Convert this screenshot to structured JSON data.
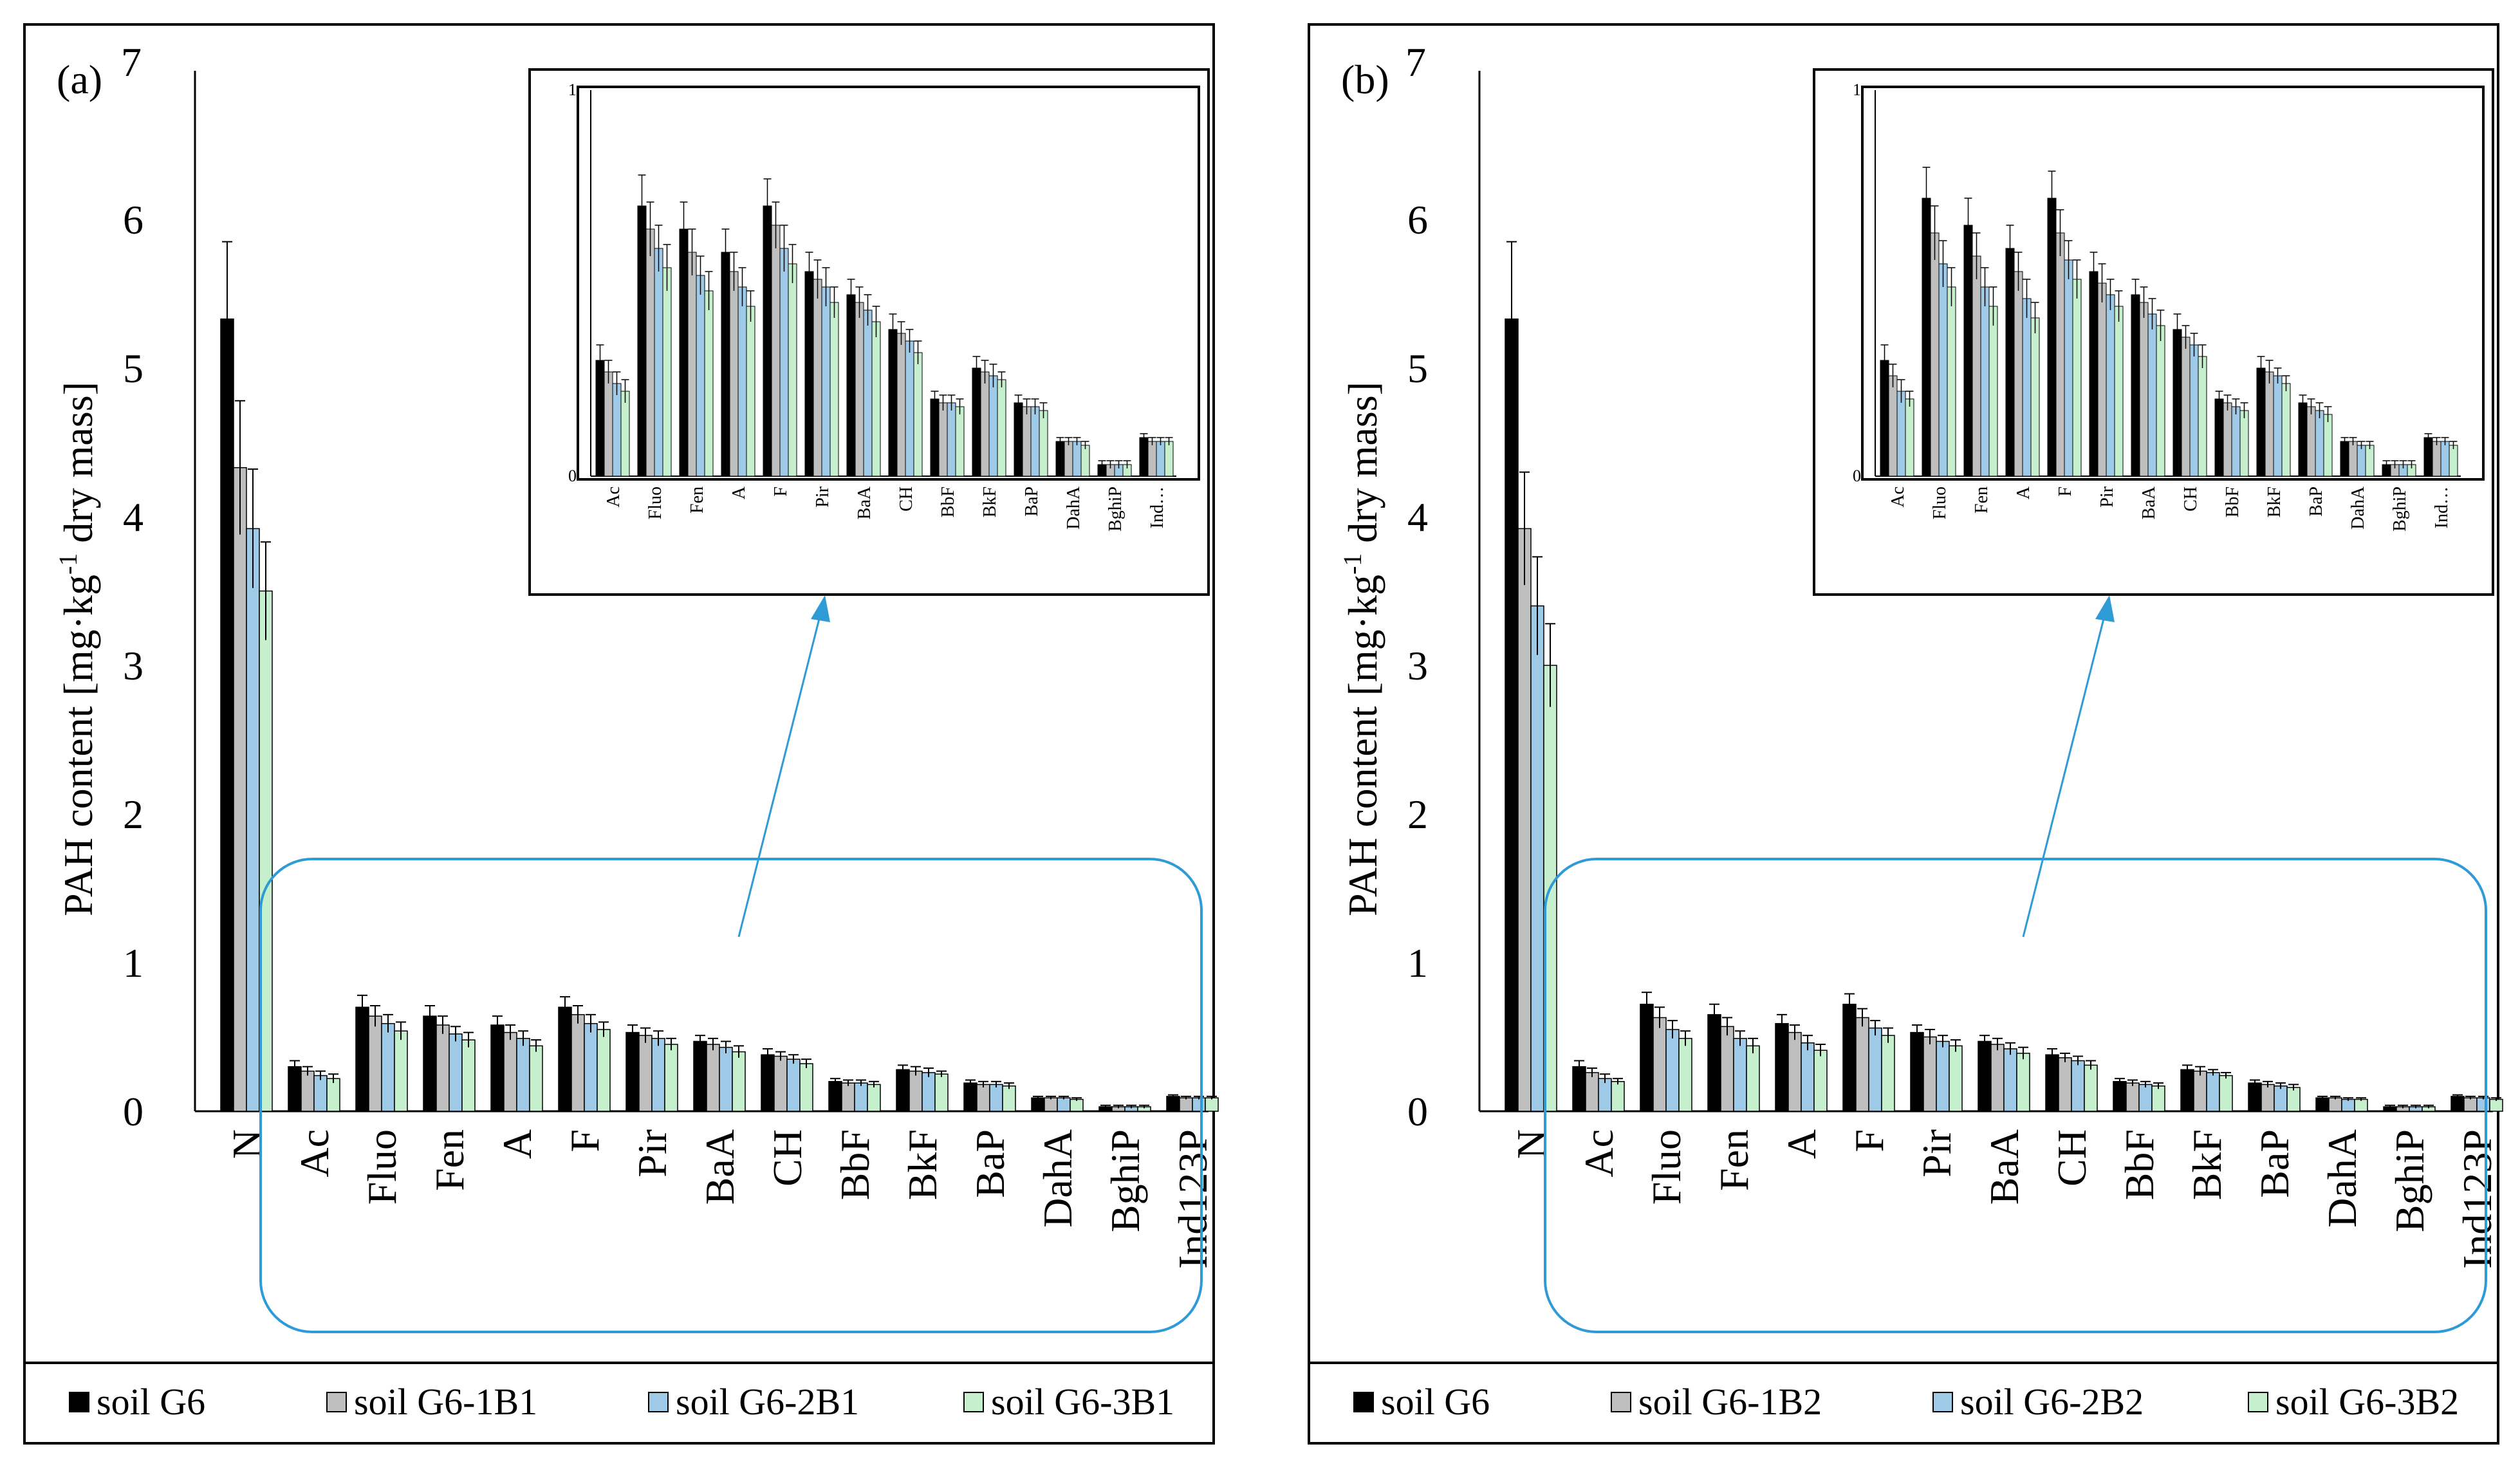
{
  "panels": [
    {
      "label": "(a)",
      "legend": [
        "soil G6",
        "soil G6-1B1",
        "soil G6-2B1",
        "soil G6-3B1"
      ]
    },
    {
      "label": "(b)",
      "legend": [
        "soil G6",
        "soil G6-1B2",
        "soil G6-2B2",
        "soil G6-3B2"
      ]
    }
  ],
  "colors": {
    "series": [
      "#000000",
      "#bfbfbf",
      "#9ecae8",
      "#c6efce"
    ],
    "highlight": "#2f9bd6",
    "frame": "#000000"
  },
  "chart_data": [
    {
      "type": "bar",
      "panel": "(a)",
      "ylabel": "PAH content [mg·kg⁻¹ dry mass]",
      "ylabel_main": "PAH content [mg·kg",
      "ylabel_sup": "-1",
      "ylabel_tail": " dry mass]",
      "ylim": [
        0,
        7
      ],
      "yticks": [
        "0",
        "1",
        "2",
        "3",
        "4",
        "5",
        "6",
        "7"
      ],
      "categories": [
        "N",
        "Ac",
        "Fluo",
        "Fen",
        "A",
        "F",
        "Pir",
        "BaA",
        "CH",
        "BbF",
        "BkF",
        "BaP",
        "DahA",
        "BghiP",
        "Ind123P"
      ],
      "series": [
        {
          "name": "soil G6",
          "values": [
            5.33,
            0.3,
            0.7,
            0.64,
            0.58,
            0.7,
            0.53,
            0.47,
            0.38,
            0.2,
            0.28,
            0.19,
            0.09,
            0.03,
            0.1
          ],
          "errors": [
            0.52,
            0.04,
            0.08,
            0.07,
            0.06,
            0.07,
            0.05,
            0.04,
            0.04,
            0.02,
            0.03,
            0.02,
            0.01,
            0.01,
            0.01
          ]
        },
        {
          "name": "soil G6-1B1",
          "values": [
            4.33,
            0.27,
            0.64,
            0.58,
            0.53,
            0.65,
            0.51,
            0.45,
            0.37,
            0.19,
            0.27,
            0.18,
            0.09,
            0.03,
            0.09
          ],
          "errors": [
            0.45,
            0.03,
            0.07,
            0.06,
            0.05,
            0.06,
            0.05,
            0.04,
            0.03,
            0.02,
            0.03,
            0.02,
            0.01,
            0.01,
            0.01
          ]
        },
        {
          "name": "soil G6-2B1",
          "values": [
            3.92,
            0.24,
            0.59,
            0.52,
            0.49,
            0.59,
            0.49,
            0.43,
            0.35,
            0.19,
            0.26,
            0.18,
            0.09,
            0.03,
            0.09
          ],
          "errors": [
            0.4,
            0.03,
            0.06,
            0.05,
            0.05,
            0.06,
            0.05,
            0.04,
            0.03,
            0.02,
            0.03,
            0.02,
            0.01,
            0.01,
            0.01
          ]
        },
        {
          "name": "soil G6-3B1",
          "values": [
            3.5,
            0.22,
            0.54,
            0.48,
            0.44,
            0.55,
            0.45,
            0.4,
            0.32,
            0.18,
            0.25,
            0.17,
            0.08,
            0.03,
            0.09
          ],
          "errors": [
            0.33,
            0.03,
            0.06,
            0.05,
            0.04,
            0.05,
            0.04,
            0.04,
            0.03,
            0.02,
            0.02,
            0.02,
            0.01,
            0.01,
            0.01
          ]
        }
      ],
      "inset": {
        "ylim": [
          0,
          1
        ],
        "yticks": [
          "0",
          "1"
        ],
        "categories": [
          "Ac",
          "Fluo",
          "Fen",
          "A",
          "F",
          "Pir",
          "BaA",
          "CH",
          "BbF",
          "BkF",
          "BaP",
          "DahA",
          "BghiP",
          "Ind…"
        ]
      }
    },
    {
      "type": "bar",
      "panel": "(b)",
      "ylabel": "PAH content [mg·kg⁻¹ dry mass]",
      "ylabel_main": "PAH content [mg·kg",
      "ylabel_sup": "-1",
      "ylabel_tail": " dry mass]",
      "ylim": [
        0,
        7
      ],
      "yticks": [
        "0",
        "1",
        "2",
        "3",
        "4",
        "5",
        "6",
        "7"
      ],
      "categories": [
        "N",
        "Ac",
        "Fluo",
        "Fen",
        "A",
        "F",
        "Pir",
        "BaA",
        "CH",
        "BbF",
        "BkF",
        "BaP",
        "DahA",
        "BghiP",
        "Ind123P"
      ],
      "series": [
        {
          "name": "soil G6",
          "values": [
            5.33,
            0.3,
            0.72,
            0.65,
            0.59,
            0.72,
            0.53,
            0.47,
            0.38,
            0.2,
            0.28,
            0.19,
            0.09,
            0.03,
            0.1
          ],
          "errors": [
            0.52,
            0.04,
            0.08,
            0.07,
            0.06,
            0.07,
            0.05,
            0.04,
            0.04,
            0.02,
            0.03,
            0.02,
            0.01,
            0.01,
            0.01
          ]
        },
        {
          "name": "soil G6-1B2",
          "values": [
            3.92,
            0.26,
            0.63,
            0.57,
            0.53,
            0.63,
            0.5,
            0.45,
            0.36,
            0.19,
            0.27,
            0.18,
            0.09,
            0.03,
            0.09
          ],
          "errors": [
            0.38,
            0.03,
            0.07,
            0.06,
            0.05,
            0.06,
            0.05,
            0.04,
            0.03,
            0.02,
            0.03,
            0.02,
            0.01,
            0.01,
            0.01
          ]
        },
        {
          "name": "soil G6-2B2",
          "values": [
            3.4,
            0.22,
            0.55,
            0.49,
            0.46,
            0.56,
            0.47,
            0.42,
            0.34,
            0.18,
            0.26,
            0.17,
            0.08,
            0.03,
            0.09
          ],
          "errors": [
            0.33,
            0.03,
            0.06,
            0.05,
            0.05,
            0.05,
            0.04,
            0.04,
            0.03,
            0.02,
            0.02,
            0.02,
            0.01,
            0.01,
            0.01
          ]
        },
        {
          "name": "soil G6-3B2",
          "values": [
            3.0,
            0.2,
            0.49,
            0.44,
            0.41,
            0.51,
            0.44,
            0.39,
            0.31,
            0.17,
            0.24,
            0.16,
            0.08,
            0.03,
            0.08
          ],
          "errors": [
            0.28,
            0.02,
            0.05,
            0.05,
            0.04,
            0.05,
            0.04,
            0.04,
            0.03,
            0.02,
            0.02,
            0.02,
            0.01,
            0.01,
            0.01
          ]
        }
      ],
      "inset": {
        "ylim": [
          0,
          1
        ],
        "yticks": [
          "0",
          "1"
        ],
        "categories": [
          "Ac",
          "Fluo",
          "Fen",
          "A",
          "F",
          "Pir",
          "BaA",
          "CH",
          "BbF",
          "BkF",
          "BaP",
          "DahA",
          "BghiP",
          "Ind…"
        ]
      }
    }
  ]
}
